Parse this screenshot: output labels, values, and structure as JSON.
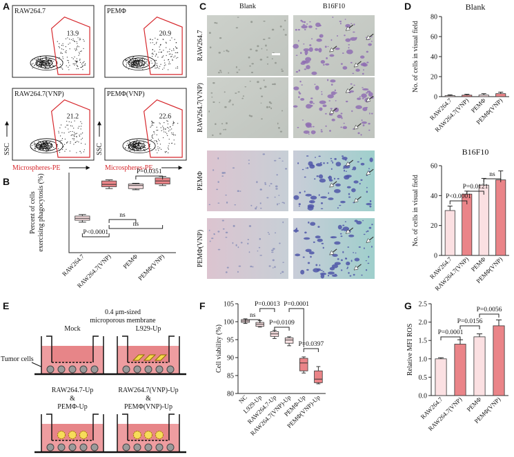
{
  "panel_labels": [
    "A",
    "B",
    "C",
    "D",
    "E",
    "F",
    "G"
  ],
  "flow_cytometry": {
    "y_axis_label": "SSC",
    "x_axis_label": "Microspheres-PE",
    "plots": [
      {
        "label": "RAW264.7",
        "gate_percent": 13.9
      },
      {
        "label": "PEMΦ",
        "gate_percent": 20.9
      },
      {
        "label": "RAW264.7(VNP)",
        "gate_percent": 21.2
      },
      {
        "label": "PEMΦ(VNP)",
        "gate_percent": 22.6
      }
    ]
  },
  "micrographs": {
    "columns": [
      "Blank",
      "B16F10"
    ],
    "rows": [
      "RAW264.7",
      "RAW264.7(VNP)",
      "PEMΦ",
      "PEMΦ(VNP)"
    ]
  },
  "transwell": {
    "membrane_label": [
      "0.4 μm-sized",
      "microporous membrane"
    ],
    "tumor_label": "Tumor cells",
    "wells": [
      [
        "Mock"
      ],
      [
        "L929-Up"
      ],
      [
        "RAW264.7-Up",
        "&",
        "PEMΦ-Up"
      ],
      [
        "RAW264.7(VNP)-Up",
        "&",
        "PEMΦ(VNP)-Up"
      ]
    ]
  },
  "chart_data": [
    {
      "type": "box",
      "ylabel": [
        "Percent of cells",
        "exercising phagocytosis (%)"
      ],
      "categories": [
        "RAW264.7",
        "RAW264.7(VNP)",
        "PEMΦ",
        "PEMΦ(VNP)"
      ],
      "boxes": [
        {
          "min": 11.0,
          "q1": 11.5,
          "median": 12.0,
          "q3": 12.6,
          "max": 13.0
        },
        {
          "min": 19.8,
          "q1": 20.3,
          "median": 20.9,
          "q3": 21.8,
          "max": 22.1
        },
        {
          "min": 19.5,
          "q1": 19.8,
          "median": 20.6,
          "q3": 21.0,
          "max": 21.2
        },
        {
          "min": 20.6,
          "q1": 21.0,
          "median": 21.8,
          "q3": 22.6,
          "max": 23.0
        }
      ],
      "colors": [
        "#fbe0e2",
        "#ea8488",
        "#fbe0e2",
        "#ea8488"
      ],
      "ylim": [
        3,
        24
      ],
      "annotations": [
        "P=0.0351",
        "ns",
        "ns",
        "P<0.0001"
      ]
    },
    {
      "type": "bar",
      "title": "Blank",
      "ylabel": "No. of cells in visual field",
      "categories": [
        "RAW264.7",
        "RAW264.7(VNP)",
        "PEMΦ",
        "PEMΦ(VNP)"
      ],
      "values": [
        1,
        1.5,
        1.6,
        3
      ],
      "errors": [
        0.8,
        0.9,
        1.4,
        1.5
      ],
      "colors": [
        "#fbe0e2",
        "#ea8488",
        "#fbe0e2",
        "#ea8488"
      ],
      "ylim": [
        0,
        80
      ],
      "yticks": [
        0,
        20,
        40,
        60,
        80
      ]
    },
    {
      "type": "bar",
      "title": "B16F10",
      "ylabel": "No. of cells in visual field",
      "categories": [
        "RAW264.7",
        "RAW264.7(VNP)",
        "PEMΦ",
        "PEMΦ(VNP)"
      ],
      "values": [
        30,
        41,
        47,
        50.5
      ],
      "errors": [
        3,
        2,
        4.5,
        6
      ],
      "colors": [
        "#fbe0e2",
        "#ea8488",
        "#fbe0e2",
        "#ea8488"
      ],
      "ylim": [
        0,
        60
      ],
      "yticks": [
        0,
        20,
        40,
        60
      ],
      "annotations": [
        "P<0.0001",
        "P=0.0121",
        "ns"
      ]
    },
    {
      "type": "box",
      "ylabel": "Cell viability (%)",
      "categories": [
        "NC",
        "L929-Up",
        "RAW264.7-Up",
        "RAW264.7(VNP)-Up",
        "PEMΦ-Up",
        "PEMΦ(VNP)-Up"
      ],
      "boxes": [
        {
          "min": 99.5,
          "q1": 99.8,
          "median": 100.2,
          "q3": 100.6,
          "max": 100.8
        },
        {
          "min": 98.5,
          "q1": 98.7,
          "median": 99.3,
          "q3": 99.8,
          "max": 100.3
        },
        {
          "min": 95.3,
          "q1": 95.9,
          "median": 96.6,
          "q3": 97.2,
          "max": 97.6
        },
        {
          "min": 93.3,
          "q1": 94.0,
          "median": 94.9,
          "q3": 95.5,
          "max": 95.8
        },
        {
          "min": 85.7,
          "q1": 86.3,
          "median": 88.5,
          "q3": 89.8,
          "max": 90.2
        },
        {
          "min": 82.7,
          "q1": 83.0,
          "median": 84.0,
          "q3": 86.3,
          "max": 87.5
        }
      ],
      "colors": [
        "#fbe0e2",
        "#fbe0e2",
        "#fbe0e2",
        "#fbe0e2",
        "#ea8488",
        "#ea8488"
      ],
      "ylim": [
        80,
        105
      ],
      "yticks": [
        80,
        85,
        90,
        95,
        100,
        105
      ],
      "annotations": [
        "ns",
        "P=0.0013",
        "P=0.0109",
        "P=0.0001",
        "P=0.0397"
      ]
    },
    {
      "type": "bar",
      "ylabel": "Relative MFI ROS",
      "categories": [
        "RAW264.7",
        "RAW264.7(VNP)",
        "PEMΦ",
        "PEMΦ(VNP)"
      ],
      "values": [
        1.0,
        1.4,
        1.6,
        1.9
      ],
      "errors": [
        0.03,
        0.12,
        0.08,
        0.16
      ],
      "colors": [
        "#fbe0e2",
        "#ea8488",
        "#fbe0e2",
        "#ea8488"
      ],
      "ylim": [
        0,
        2.5
      ],
      "yticks": [
        {
          "value": 0,
          "label": "0.0"
        },
        0.5,
        {
          "value": 1,
          "label": "1.0"
        },
        1.5,
        {
          "value": 2,
          "label": "2.0"
        },
        2.5
      ],
      "annotations": [
        "P=0.0001",
        "P=0.0156",
        "P=0.0056"
      ]
    }
  ]
}
